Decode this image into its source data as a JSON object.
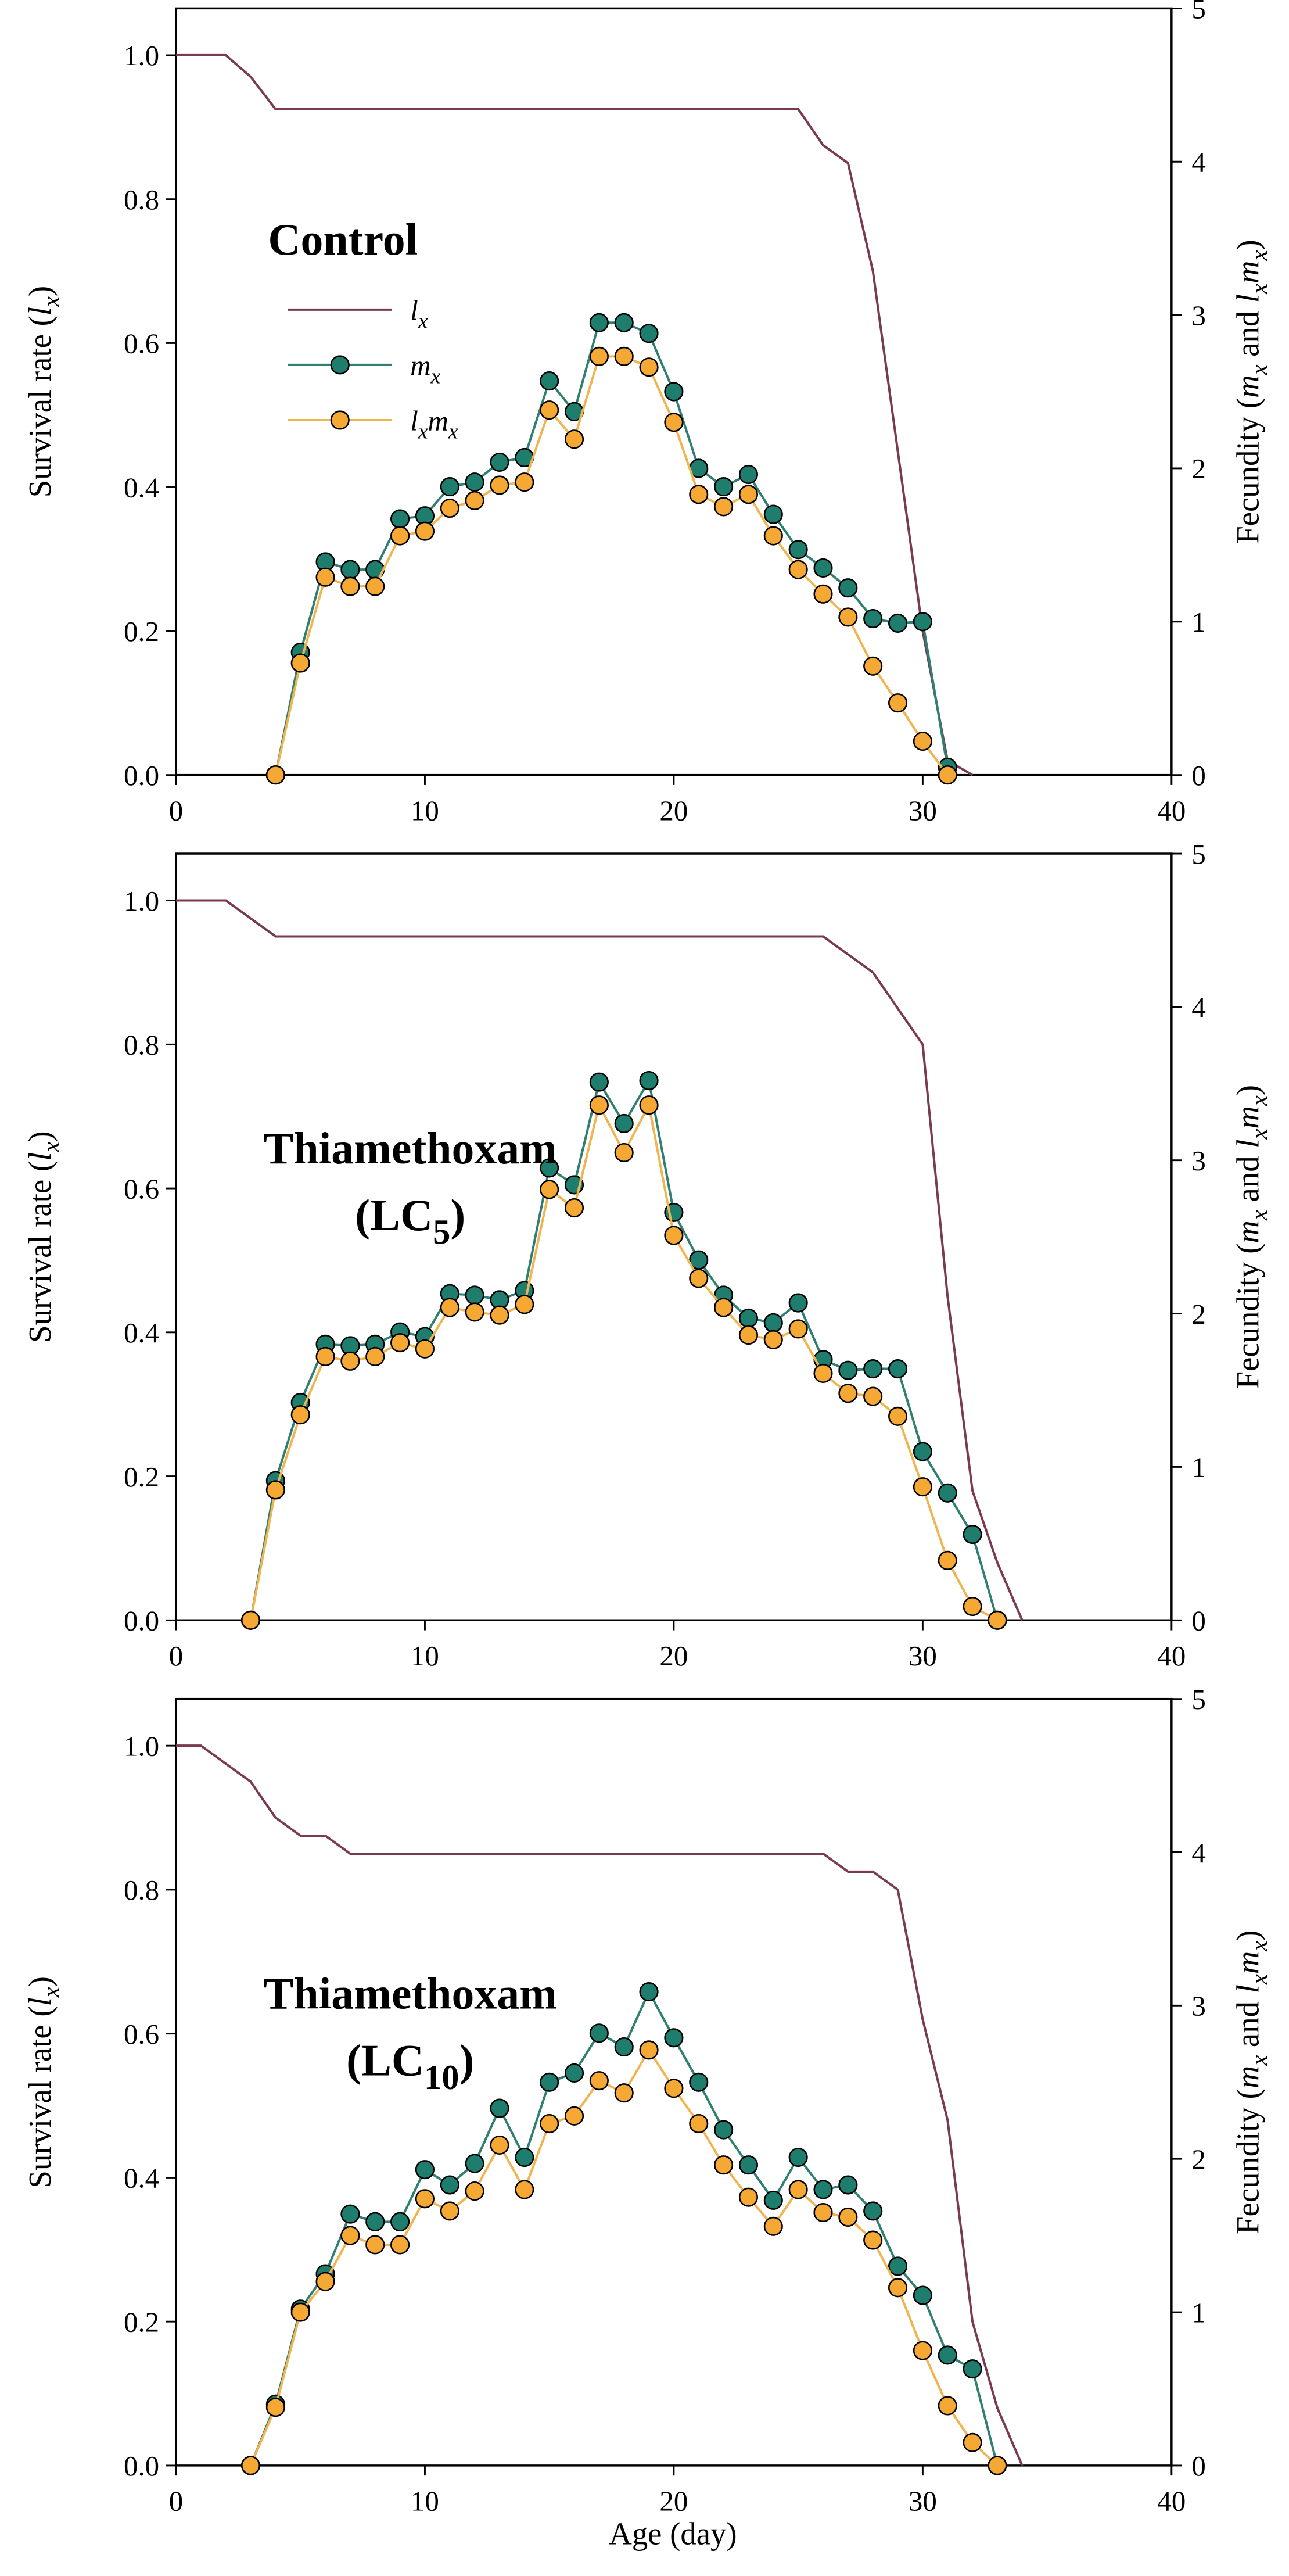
{
  "chart_data": [
    {
      "type": "line",
      "title": "Control",
      "xlabel": "Age (day)",
      "ylabel_left": "Survival rate (lx)",
      "ylabel_right": "Fecundity (mx and lxmx)",
      "xlim": [
        0,
        40
      ],
      "ylim_left": [
        0,
        1.065
      ],
      "ylim_right": [
        0,
        5
      ],
      "x_ticks": [
        "0",
        "10",
        "20",
        "30",
        "40"
      ],
      "y_left_ticks": [
        "0.0",
        "0.2",
        "0.4",
        "0.6",
        "0.8",
        "1.0"
      ],
      "y_right_ticks": [
        "0",
        "1",
        "2",
        "3",
        "4",
        "5"
      ],
      "legend": [
        "lx",
        "mx",
        "lxmx"
      ],
      "legend_placement": "upper-left",
      "series": [
        {
          "name": "lx",
          "axis": "left",
          "x": [
            0,
            1,
            2,
            3,
            4,
            5,
            25,
            26,
            27,
            28,
            29,
            30,
            31,
            32
          ],
          "values": [
            1.0,
            1.0,
            1.0,
            0.97,
            0.925,
            0.925,
            0.925,
            0.875,
            0.85,
            0.7,
            0.45,
            0.2,
            0.02,
            0
          ]
        },
        {
          "name": "mx",
          "axis": "right",
          "x": [
            4,
            5,
            6,
            7,
            8,
            9,
            10,
            11,
            12,
            13,
            14,
            15,
            16,
            17,
            18,
            19,
            20,
            21,
            22,
            23,
            24,
            25,
            26,
            27,
            28,
            29,
            30,
            31
          ],
          "values": [
            0,
            0.8,
            1.39,
            1.34,
            1.34,
            1.67,
            1.69,
            1.88,
            1.91,
            2.04,
            2.07,
            2.57,
            2.37,
            2.95,
            2.95,
            2.88,
            2.5,
            2.0,
            1.88,
            1.96,
            1.7,
            1.47,
            1.35,
            1.22,
            1.02,
            0.99,
            1.0,
            0.05
          ]
        },
        {
          "name": "lxmx",
          "axis": "right",
          "x": [
            4,
            5,
            6,
            7,
            8,
            9,
            10,
            11,
            12,
            13,
            14,
            15,
            16,
            17,
            18,
            19,
            20,
            21,
            22,
            23,
            24,
            25,
            26,
            27,
            28,
            29,
            30,
            31
          ],
          "values": [
            0,
            0.73,
            1.29,
            1.23,
            1.23,
            1.56,
            1.59,
            1.74,
            1.79,
            1.89,
            1.91,
            2.38,
            2.19,
            2.73,
            2.73,
            2.66,
            2.3,
            1.83,
            1.75,
            1.83,
            1.56,
            1.34,
            1.18,
            1.03,
            0.71,
            0.47,
            0.22,
            0
          ]
        }
      ]
    },
    {
      "type": "line",
      "title": "Thiamethoxam",
      "subtitle": "(LC",
      "subtitle_sub": "5",
      "subtitle_end": ")",
      "xlabel": "Age (day)",
      "ylabel_left": "Survival rate (lx)",
      "ylabel_right": "Fecundity (mx and lxmx)",
      "xlim": [
        0,
        40
      ],
      "ylim_left": [
        0,
        1.065
      ],
      "ylim_right": [
        0,
        5
      ],
      "x_ticks": [
        "0",
        "10",
        "20",
        "30",
        "40"
      ],
      "y_left_ticks": [
        "0.0",
        "0.2",
        "0.4",
        "0.6",
        "0.8",
        "1.0"
      ],
      "y_right_ticks": [
        "0",
        "1",
        "2",
        "3",
        "4",
        "5"
      ],
      "series": [
        {
          "name": "lx",
          "axis": "left",
          "x": [
            0,
            1,
            2,
            3,
            4,
            26,
            27,
            28,
            29,
            30,
            31,
            32,
            33,
            34
          ],
          "values": [
            1.0,
            1.0,
            1.0,
            0.975,
            0.95,
            0.95,
            0.925,
            0.9,
            0.85,
            0.8,
            0.45,
            0.18,
            0.08,
            0
          ]
        },
        {
          "name": "mx",
          "axis": "right",
          "x": [
            3,
            4,
            5,
            6,
            7,
            8,
            9,
            10,
            11,
            12,
            13,
            14,
            15,
            16,
            17,
            18,
            19,
            20,
            21,
            22,
            23,
            24,
            25,
            26,
            27,
            28,
            29,
            30,
            31,
            32,
            33
          ],
          "values": [
            0,
            0.91,
            1.42,
            1.8,
            1.79,
            1.8,
            1.88,
            1.85,
            2.13,
            2.12,
            2.09,
            2.15,
            2.95,
            2.84,
            3.51,
            3.24,
            3.52,
            2.66,
            2.35,
            2.12,
            1.97,
            1.94,
            2.07,
            1.7,
            1.63,
            1.64,
            1.64,
            1.1,
            0.83,
            0.56,
            0
          ]
        },
        {
          "name": "lxmx",
          "axis": "right",
          "x": [
            3,
            4,
            5,
            6,
            7,
            8,
            9,
            10,
            11,
            12,
            13,
            14,
            15,
            16,
            17,
            18,
            19,
            20,
            21,
            22,
            23,
            24,
            25,
            26,
            27,
            28,
            29,
            30,
            31,
            32,
            33
          ],
          "values": [
            0,
            0.85,
            1.34,
            1.72,
            1.69,
            1.72,
            1.81,
            1.77,
            2.04,
            2.01,
            1.99,
            2.06,
            2.81,
            2.69,
            3.36,
            3.05,
            3.36,
            2.51,
            2.23,
            2.04,
            1.86,
            1.83,
            1.9,
            1.61,
            1.48,
            1.46,
            1.33,
            0.87,
            0.39,
            0.09,
            0
          ]
        }
      ]
    },
    {
      "type": "line",
      "title": "Thiamethoxam",
      "subtitle": "(LC",
      "subtitle_sub": "10",
      "subtitle_end": ")",
      "xlabel": "Age (day)",
      "ylabel_left": "Survival rate (lx)",
      "ylabel_right": "Fecundity (mx and lxmx)",
      "xlim": [
        0,
        40
      ],
      "ylim_left": [
        0,
        1.065
      ],
      "ylim_right": [
        0,
        5
      ],
      "x_ticks": [
        "0",
        "10",
        "20",
        "30",
        "40"
      ],
      "y_left_ticks": [
        "0.0",
        "0.2",
        "0.4",
        "0.6",
        "0.8",
        "1.0"
      ],
      "y_right_ticks": [
        "0",
        "1",
        "2",
        "3",
        "4",
        "5"
      ],
      "series": [
        {
          "name": "lx",
          "axis": "left",
          "x": [
            0,
            1,
            2,
            3,
            4,
            5,
            6,
            7,
            26,
            27,
            28,
            29,
            30,
            31,
            32,
            33,
            34
          ],
          "values": [
            1.0,
            1.0,
            0.975,
            0.95,
            0.9,
            0.875,
            0.875,
            0.85,
            0.85,
            0.825,
            0.825,
            0.8,
            0.62,
            0.48,
            0.2,
            0.08,
            0
          ]
        },
        {
          "name": "mx",
          "axis": "right",
          "x": [
            3,
            4,
            5,
            6,
            7,
            8,
            9,
            10,
            11,
            12,
            13,
            14,
            15,
            16,
            17,
            18,
            19,
            20,
            21,
            22,
            23,
            24,
            25,
            26,
            27,
            28,
            29,
            30,
            31,
            32,
            33
          ],
          "values": [
            0,
            0.4,
            1.02,
            1.25,
            1.64,
            1.59,
            1.59,
            1.93,
            1.83,
            1.97,
            2.33,
            2.01,
            2.5,
            2.56,
            2.82,
            2.73,
            3.09,
            2.79,
            2.5,
            2.19,
            1.96,
            1.73,
            2.01,
            1.8,
            1.83,
            1.66,
            1.3,
            1.11,
            0.72,
            0.63,
            0
          ]
        },
        {
          "name": "lxmx",
          "axis": "right",
          "x": [
            3,
            4,
            5,
            6,
            7,
            8,
            9,
            10,
            11,
            12,
            13,
            14,
            15,
            16,
            17,
            18,
            19,
            20,
            21,
            22,
            23,
            24,
            25,
            26,
            27,
            28,
            29,
            30,
            31,
            32,
            33
          ],
          "values": [
            0,
            0.38,
            1.0,
            1.2,
            1.5,
            1.44,
            1.44,
            1.74,
            1.66,
            1.79,
            2.09,
            1.8,
            2.23,
            2.28,
            2.51,
            2.43,
            2.71,
            2.46,
            2.23,
            1.96,
            1.75,
            1.56,
            1.8,
            1.65,
            1.62,
            1.47,
            1.16,
            0.75,
            0.39,
            0.15,
            0
          ]
        }
      ]
    }
  ],
  "colors": {
    "lx": "#7a3b52",
    "mx_line": "#2f7f72",
    "mx_fill": "#1e7d6c",
    "lxmx_line": "#f0b550",
    "lxmx_fill": "#f5a833"
  },
  "x_axis_title": "Age (day)"
}
